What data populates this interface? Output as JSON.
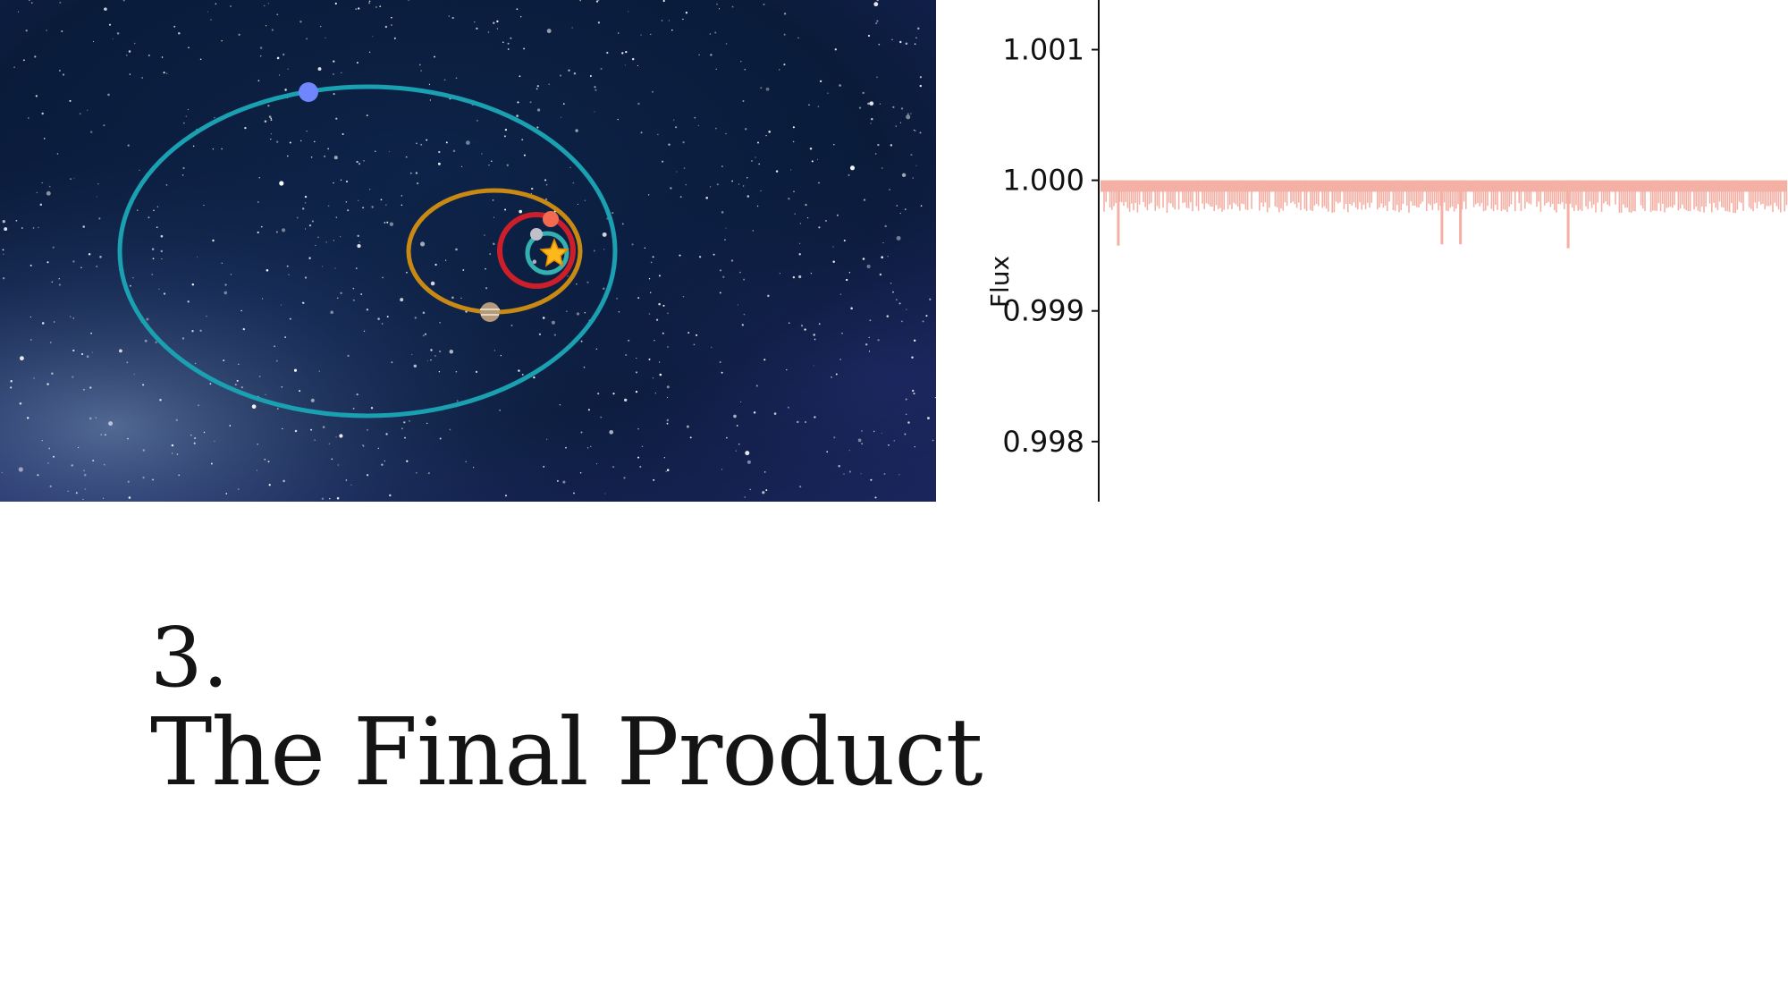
{
  "slide": {
    "section_number": "3.",
    "section_title": "The Final Product"
  },
  "orbit_illustration": {
    "background": "starry night sky",
    "central_body": "star",
    "orbit_colors": [
      "#1aa0b0",
      "#c98a14",
      "#cc1f2a",
      "#33b0b0"
    ],
    "planet_colors": [
      "#6f86ff",
      "#f26a4f",
      "#c0c0c8",
      "#b49a7a"
    ],
    "star_color": "#ffb81c"
  },
  "chart_data": {
    "type": "line",
    "title": "",
    "xlabel": "",
    "ylabel": "Flux",
    "ylim": [
      0.99754,
      1.00138
    ],
    "y_ticks": [
      1.001,
      1.0,
      0.999,
      0.998
    ],
    "y_tick_labels": [
      "1.001",
      "1.000",
      "0.999",
      "0.998"
    ],
    "grid": false,
    "baseline": 1.0,
    "series": [
      {
        "color": "#f4b0a4",
        "typical_min_flux": 0.99975,
        "deep_transits": [
          {
            "position": 0.024,
            "min_flux": 0.9995
          },
          {
            "position": 0.496,
            "min_flux": 0.99951
          },
          {
            "position": 0.523,
            "min_flux": 0.99951
          },
          {
            "position": 0.68,
            "min_flux": 0.99948
          }
        ]
      }
    ]
  }
}
